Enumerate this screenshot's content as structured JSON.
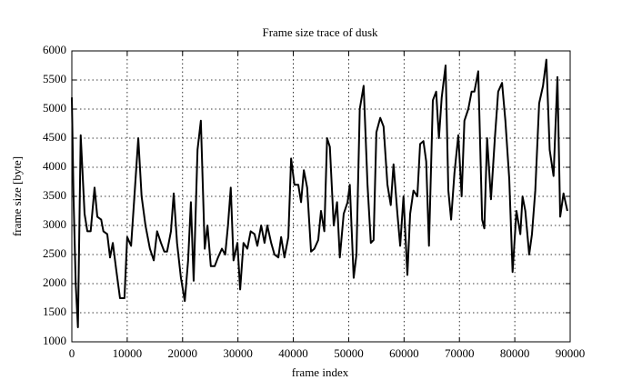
{
  "chart_data": {
    "type": "line",
    "title": "Frame size trace of dusk",
    "xlabel": "frame index",
    "ylabel": "frame size [byte]",
    "xlim": [
      0,
      90000
    ],
    "ylim": [
      1000,
      6000
    ],
    "xticks": [
      0,
      10000,
      20000,
      30000,
      40000,
      50000,
      60000,
      70000,
      80000,
      90000
    ],
    "yticks": [
      1000,
      1500,
      2000,
      2500,
      3000,
      3500,
      4000,
      4500,
      5000,
      5500,
      6000
    ],
    "grid": true,
    "series": [
      {
        "color": "#000000",
        "x": [
          0,
          300,
          700,
          1100,
          1600,
          2300,
          2800,
          3400,
          4100,
          4600,
          5300,
          5700,
          6400,
          6900,
          7400,
          8000,
          8700,
          9500,
          10000,
          10700,
          11300,
          12000,
          12600,
          13300,
          14100,
          14800,
          15400,
          16100,
          16700,
          17200,
          17900,
          18400,
          19000,
          19700,
          20400,
          21000,
          21500,
          22000,
          22700,
          23300,
          24000,
          24500,
          25100,
          25800,
          26400,
          27100,
          27700,
          28200,
          28700,
          29200,
          29900,
          30400,
          31000,
          31700,
          32300,
          33000,
          33500,
          34200,
          34800,
          35300,
          36000,
          36600,
          37300,
          37800,
          38400,
          39100,
          39600,
          40200,
          40900,
          41400,
          41900,
          42500,
          43200,
          43800,
          44500,
          45000,
          45600,
          46100,
          46600,
          47300,
          47900,
          48400,
          49100,
          49800,
          50200,
          50900,
          51400,
          52000,
          52700,
          53400,
          54000,
          54500,
          55000,
          55700,
          56300,
          57000,
          57600,
          58100,
          58800,
          59300,
          59900,
          60600,
          61100,
          61700,
          62400,
          62900,
          63500,
          64000,
          64500,
          65200,
          65800,
          66300,
          66800,
          67500,
          68000,
          68500,
          69100,
          69800,
          70400,
          70900,
          71600,
          72200,
          72700,
          73400,
          74100,
          74500,
          75000,
          75700,
          76400,
          77000,
          77700,
          78300,
          79000,
          79600,
          80300,
          81000,
          81400,
          81900,
          82600,
          83100,
          83700,
          84400,
          85100,
          85700,
          86300,
          87000,
          87700,
          88200,
          88800,
          89500
        ],
        "values": [
          5200,
          3500,
          2000,
          1250,
          4550,
          3200,
          2900,
          2900,
          3650,
          3150,
          3100,
          2900,
          2850,
          2450,
          2700,
          2250,
          1750,
          1750,
          2800,
          2650,
          3500,
          4500,
          3500,
          3000,
          2600,
          2400,
          2900,
          2700,
          2550,
          2550,
          2900,
          3550,
          2700,
          2100,
          1700,
          2400,
          3400,
          2050,
          4300,
          4800,
          2600,
          3000,
          2300,
          2300,
          2450,
          2600,
          2500,
          3000,
          3650,
          2400,
          2700,
          1900,
          2700,
          2600,
          2900,
          2850,
          2650,
          3000,
          2700,
          3000,
          2700,
          2500,
          2450,
          2800,
          2450,
          2800,
          4150,
          3700,
          3700,
          3400,
          3950,
          3650,
          2550,
          2600,
          2750,
          3250,
          2900,
          4500,
          4350,
          3000,
          3400,
          2450,
          3200,
          3400,
          3700,
          2100,
          2500,
          5000,
          5400,
          3700,
          2700,
          2750,
          4600,
          4850,
          4700,
          3700,
          3350,
          4050,
          3200,
          2650,
          3500,
          2150,
          3200,
          3600,
          3500,
          4400,
          4450,
          4100,
          2650,
          5150,
          5300,
          4500,
          5200,
          5750,
          3600,
          3100,
          3900,
          4550,
          3500,
          4800,
          5000,
          5300,
          5300,
          5650,
          3100,
          2950,
          4500,
          3450,
          4500,
          5300,
          5450,
          4800,
          3800,
          2200,
          3250,
          2850,
          3500,
          3250,
          2500,
          2850,
          3600,
          5100,
          5400,
          5850,
          4300,
          3850,
          5550,
          3150,
          3550,
          3250
        ]
      }
    ]
  }
}
